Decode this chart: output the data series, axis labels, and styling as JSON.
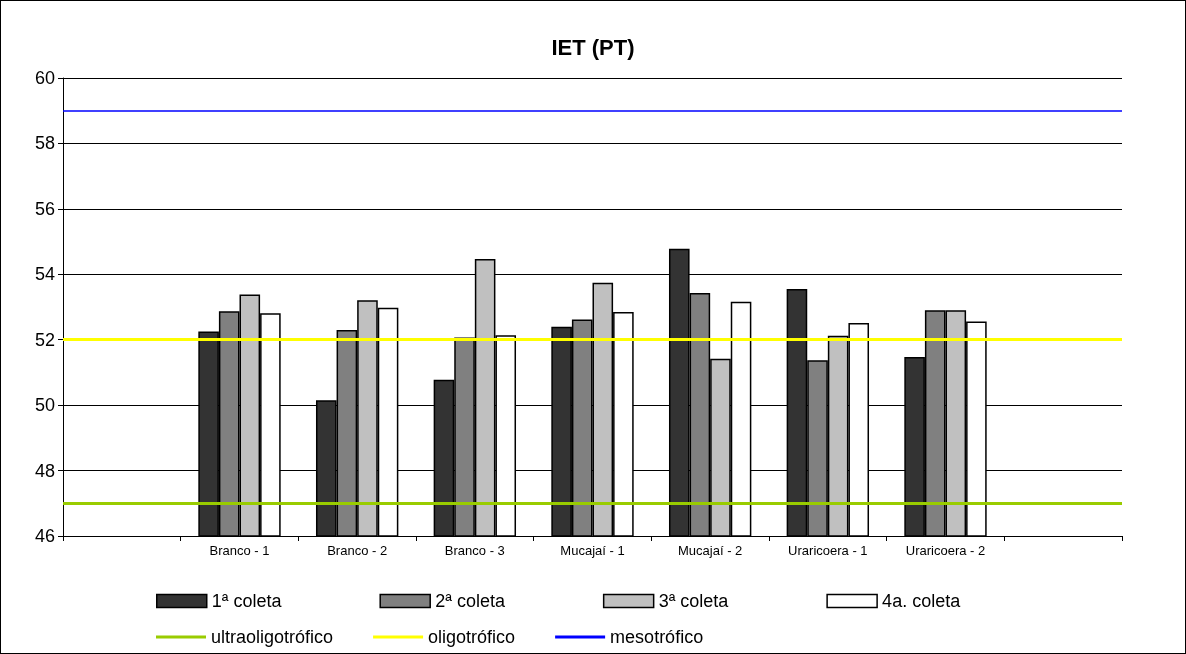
{
  "chart_data": {
    "type": "bar",
    "title": "IET (PT)",
    "categories": [
      null,
      "Branco - 1",
      "Branco - 2",
      "Branco - 3",
      "Mucajaí - 1",
      "Mucajaí - 2",
      "Uraricoera - 1",
      "Uraricoera - 2",
      null
    ],
    "series": [
      {
        "name": "1ª coleta",
        "color": "#333333",
        "values": [
          null,
          52.25,
          50.15,
          50.78,
          52.4,
          54.78,
          53.55,
          51.47,
          null
        ]
      },
      {
        "name": "2ª coleta",
        "color": "#808080",
        "values": [
          null,
          52.87,
          52.3,
          52.07,
          52.62,
          53.43,
          51.37,
          52.9,
          null
        ]
      },
      {
        "name": "3ª coleta",
        "color": "#c0c0c0",
        "values": [
          null,
          53.38,
          53.21,
          54.47,
          53.74,
          51.42,
          52.12,
          52.9,
          null
        ]
      },
      {
        "name": "4a. coleta",
        "color": "#ffffff",
        "values": [
          null,
          52.81,
          52.98,
          52.14,
          52.85,
          53.16,
          52.51,
          52.56,
          null
        ]
      }
    ],
    "ref_lines": [
      {
        "axis": "y",
        "value": 47,
        "label": "ultraoligotrófico",
        "color": "#99cc00"
      },
      {
        "axis": "y",
        "value": 52,
        "label": "oligotrófico",
        "color": "#ffff00"
      },
      {
        "axis": "y",
        "value": 59,
        "label": "mesotrófico",
        "color": "#0000ff"
      }
    ],
    "ylim": [
      46,
      60
    ],
    "yticks": [
      46,
      48,
      50,
      52,
      54,
      56,
      58,
      60
    ],
    "grid": "y",
    "legend": "bottom"
  }
}
